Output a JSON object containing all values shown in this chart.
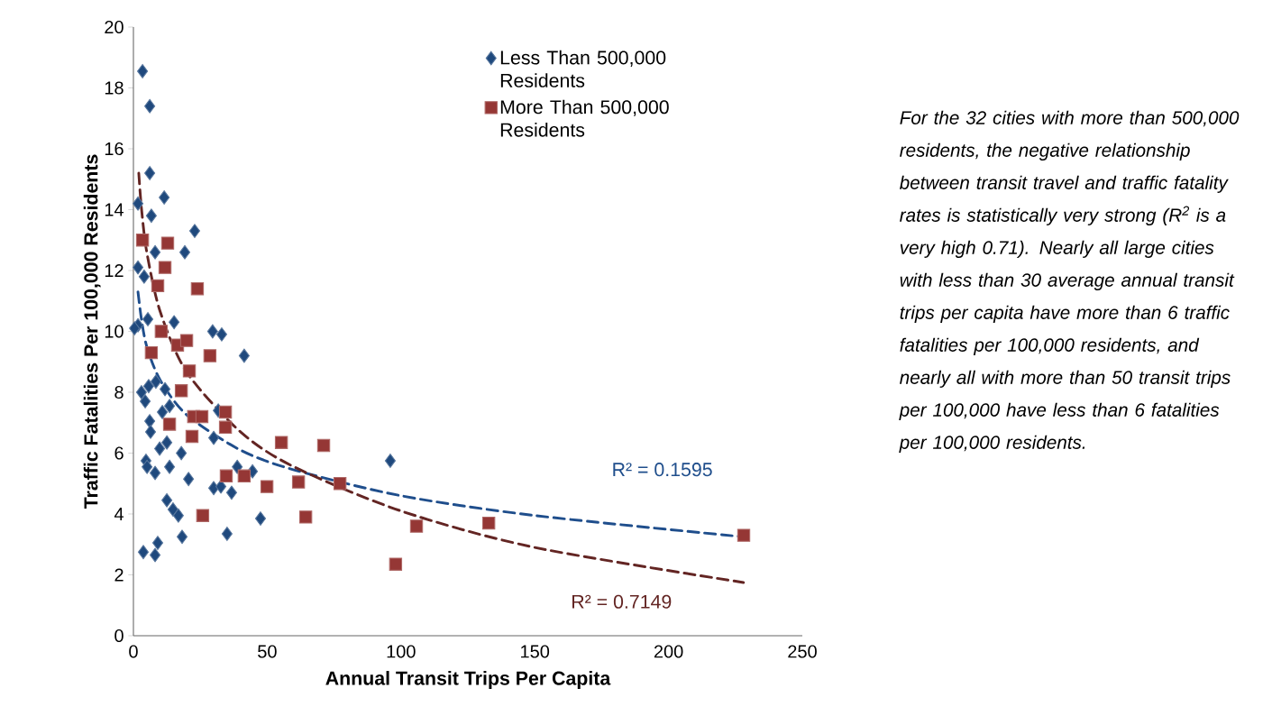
{
  "chart_data": {
    "type": "scatter",
    "xlabel": "Annual Transit Trips Per Capita",
    "ylabel": "Traffic Fatalities Per 100,000 Residents",
    "xlim": [
      0,
      250
    ],
    "xticks": [
      0,
      50,
      100,
      150,
      200,
      250
    ],
    "ylim": [
      0,
      20
    ],
    "yticks": [
      0,
      2,
      4,
      6,
      8,
      10,
      12,
      14,
      16,
      18,
      20
    ],
    "legend": "top",
    "series": [
      {
        "name": "Less Than 500,000 Residents",
        "color": "#1f497d",
        "marker": "diamond",
        "x": [
          3.4,
          6.1,
          6.1,
          1.7,
          11.5,
          6.7,
          22.9,
          8.1,
          19.2,
          1.7,
          4.0,
          5.4,
          1.7,
          0.4,
          15.2,
          29.6,
          33.0,
          41.4,
          8.4,
          5.7,
          3.0,
          4.4,
          11.8,
          13.5,
          10.8,
          6.1,
          6.4,
          12.5,
          9.8,
          17.9,
          4.7,
          5.1,
          8.1,
          13.5,
          20.6,
          12.5,
          14.8,
          16.8,
          18.2,
          9.1,
          3.7,
          8.1,
          35.0,
          30.0,
          32.7,
          36.7,
          38.8,
          44.5,
          47.5,
          96.0,
          31.7,
          30.0
        ],
        "values": [
          18.55,
          17.4,
          15.2,
          14.2,
          14.4,
          13.8,
          13.3,
          12.6,
          12.6,
          12.1,
          11.8,
          10.4,
          10.2,
          10.1,
          10.3,
          10.0,
          9.9,
          9.2,
          8.35,
          8.2,
          8.0,
          7.7,
          8.1,
          7.55,
          7.35,
          7.05,
          6.7,
          6.35,
          6.15,
          6.0,
          5.75,
          5.55,
          5.35,
          5.55,
          5.15,
          4.45,
          4.15,
          3.95,
          3.25,
          3.05,
          2.75,
          2.65,
          3.35,
          4.85,
          4.9,
          4.7,
          5.55,
          5.4,
          3.85,
          5.75,
          7.4,
          6.5
        ]
      },
      {
        "name": "More Than 500,000 Residents",
        "color": "#953735",
        "marker": "square",
        "x": [
          3.4,
          12.8,
          11.8,
          9.1,
          23.9,
          10.4,
          6.7,
          16.5,
          19.9,
          28.6,
          20.9,
          17.9,
          22.5,
          25.6,
          34.4,
          34.4,
          13.5,
          21.9,
          34.7,
          25.9,
          41.4,
          49.9,
          55.3,
          61.7,
          71.1,
          64.4,
          77.2,
          105.8,
          98.0,
          132.8,
          228.1
        ],
        "values": [
          13.0,
          12.9,
          12.1,
          11.5,
          11.4,
          10.0,
          9.3,
          9.55,
          9.7,
          9.2,
          8.7,
          8.05,
          7.2,
          7.2,
          7.35,
          6.85,
          6.95,
          6.55,
          5.25,
          3.95,
          5.25,
          4.9,
          6.35,
          5.05,
          6.25,
          3.9,
          5.0,
          3.6,
          2.35,
          3.7,
          3.3
        ]
      },
      {
        "type": "line",
        "color": "#1f4e8c",
        "marker": "none",
        "line_style": "dashed",
        "x": [
          1.7,
          3,
          5,
          10,
          20,
          40,
          60,
          100,
          150,
          228
        ],
        "values": [
          11.3,
          10.4,
          9.5,
          8.4,
          7.25,
          6.1,
          5.45,
          4.6,
          3.95,
          3.25
        ]
      },
      {
        "type": "line",
        "color": "#632523",
        "marker": "none",
        "line_style": "dashed",
        "x": [
          2,
          3,
          5,
          10,
          20,
          40,
          60,
          100,
          150,
          228
        ],
        "values": [
          15.2,
          14.05,
          12.6,
          10.65,
          8.65,
          6.7,
          5.55,
          4.1,
          2.9,
          1.75
        ]
      }
    ],
    "annotations": [
      "R² = 0.1595",
      "R² = 0.7149",
      "For the 32 cities with more than 500,000 residents, the negative relationship between transit travel and traffic fatality rates is statistically very strong (R$^{2}$ is a very high 0.71). Nearly all large cities with less than 30 average annual transit trips per capita have more than 6 traffic fatalities per 100,000 residents, and nearly all with more than 50 transit trips per 100,000 have less than 6 fatalities per 100,000 residents."
    ]
  }
}
